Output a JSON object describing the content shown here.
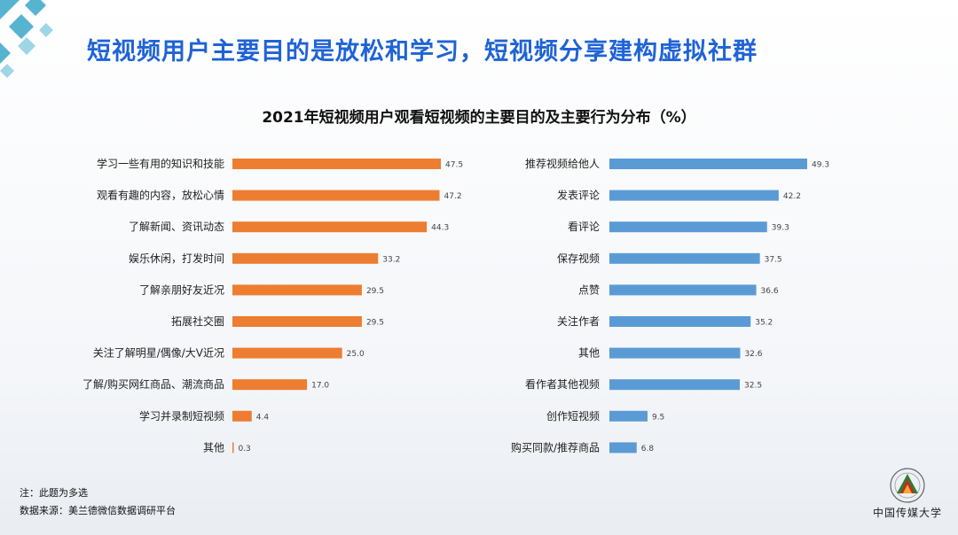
{
  "headline": "短视频用户主要目的是放松和学习，短视频分享建构虚拟社群",
  "notes": {
    "note": "注：此题为多选",
    "source": "数据来源：美兰德微信数据调研平台"
  },
  "logo": {
    "text": "中国传媒大学"
  },
  "colors": {
    "left_bar": "#ed7d31",
    "right_bar": "#5b9bd5",
    "headline": "#1f63d6"
  },
  "chart_data": {
    "type": "bar",
    "orientation": "horizontal",
    "title": "2021年短视频用户观看短视频的主要目的及主要行为分布（%）",
    "panels": [
      {
        "color": "#ed7d31",
        "categories": [
          "学习一些有用的知识和技能",
          "观看有趣的内容，放松心情",
          "了解新闻、资讯动态",
          "娱乐休闲，打发时间",
          "了解亲朋好友近况",
          "拓展社交圈",
          "关注了解明星/偶像/大V近况",
          "了解/购买网红商品、潮流商品",
          "学习并录制短视频",
          "其他"
        ],
        "values": [
          47.5,
          47.2,
          44.3,
          33.2,
          29.5,
          29.5,
          25.0,
          17.0,
          4.4,
          0.3
        ],
        "labels": [
          "47.5",
          "47.2",
          "44.3",
          "33.2",
          "29.5",
          "29.5",
          "25.0",
          "17.0",
          "4.4",
          "0.3"
        ]
      },
      {
        "color": "#5b9bd5",
        "categories": [
          "推荐视频给他人",
          "发表评论",
          "看评论",
          "保存视频",
          "点赞",
          "关注作者",
          "其他",
          "看作者其他视频",
          "创作短视频",
          "购买同款/推荐商品"
        ],
        "values": [
          49.3,
          42.2,
          39.3,
          37.5,
          36.6,
          35.2,
          32.6,
          32.5,
          9.5,
          6.8
        ],
        "labels": [
          "49.3",
          "42.2",
          "39.3",
          "37.5",
          "36.6",
          "35.2",
          "32.6",
          "32.5",
          "9.5",
          "6.8"
        ]
      }
    ]
  }
}
